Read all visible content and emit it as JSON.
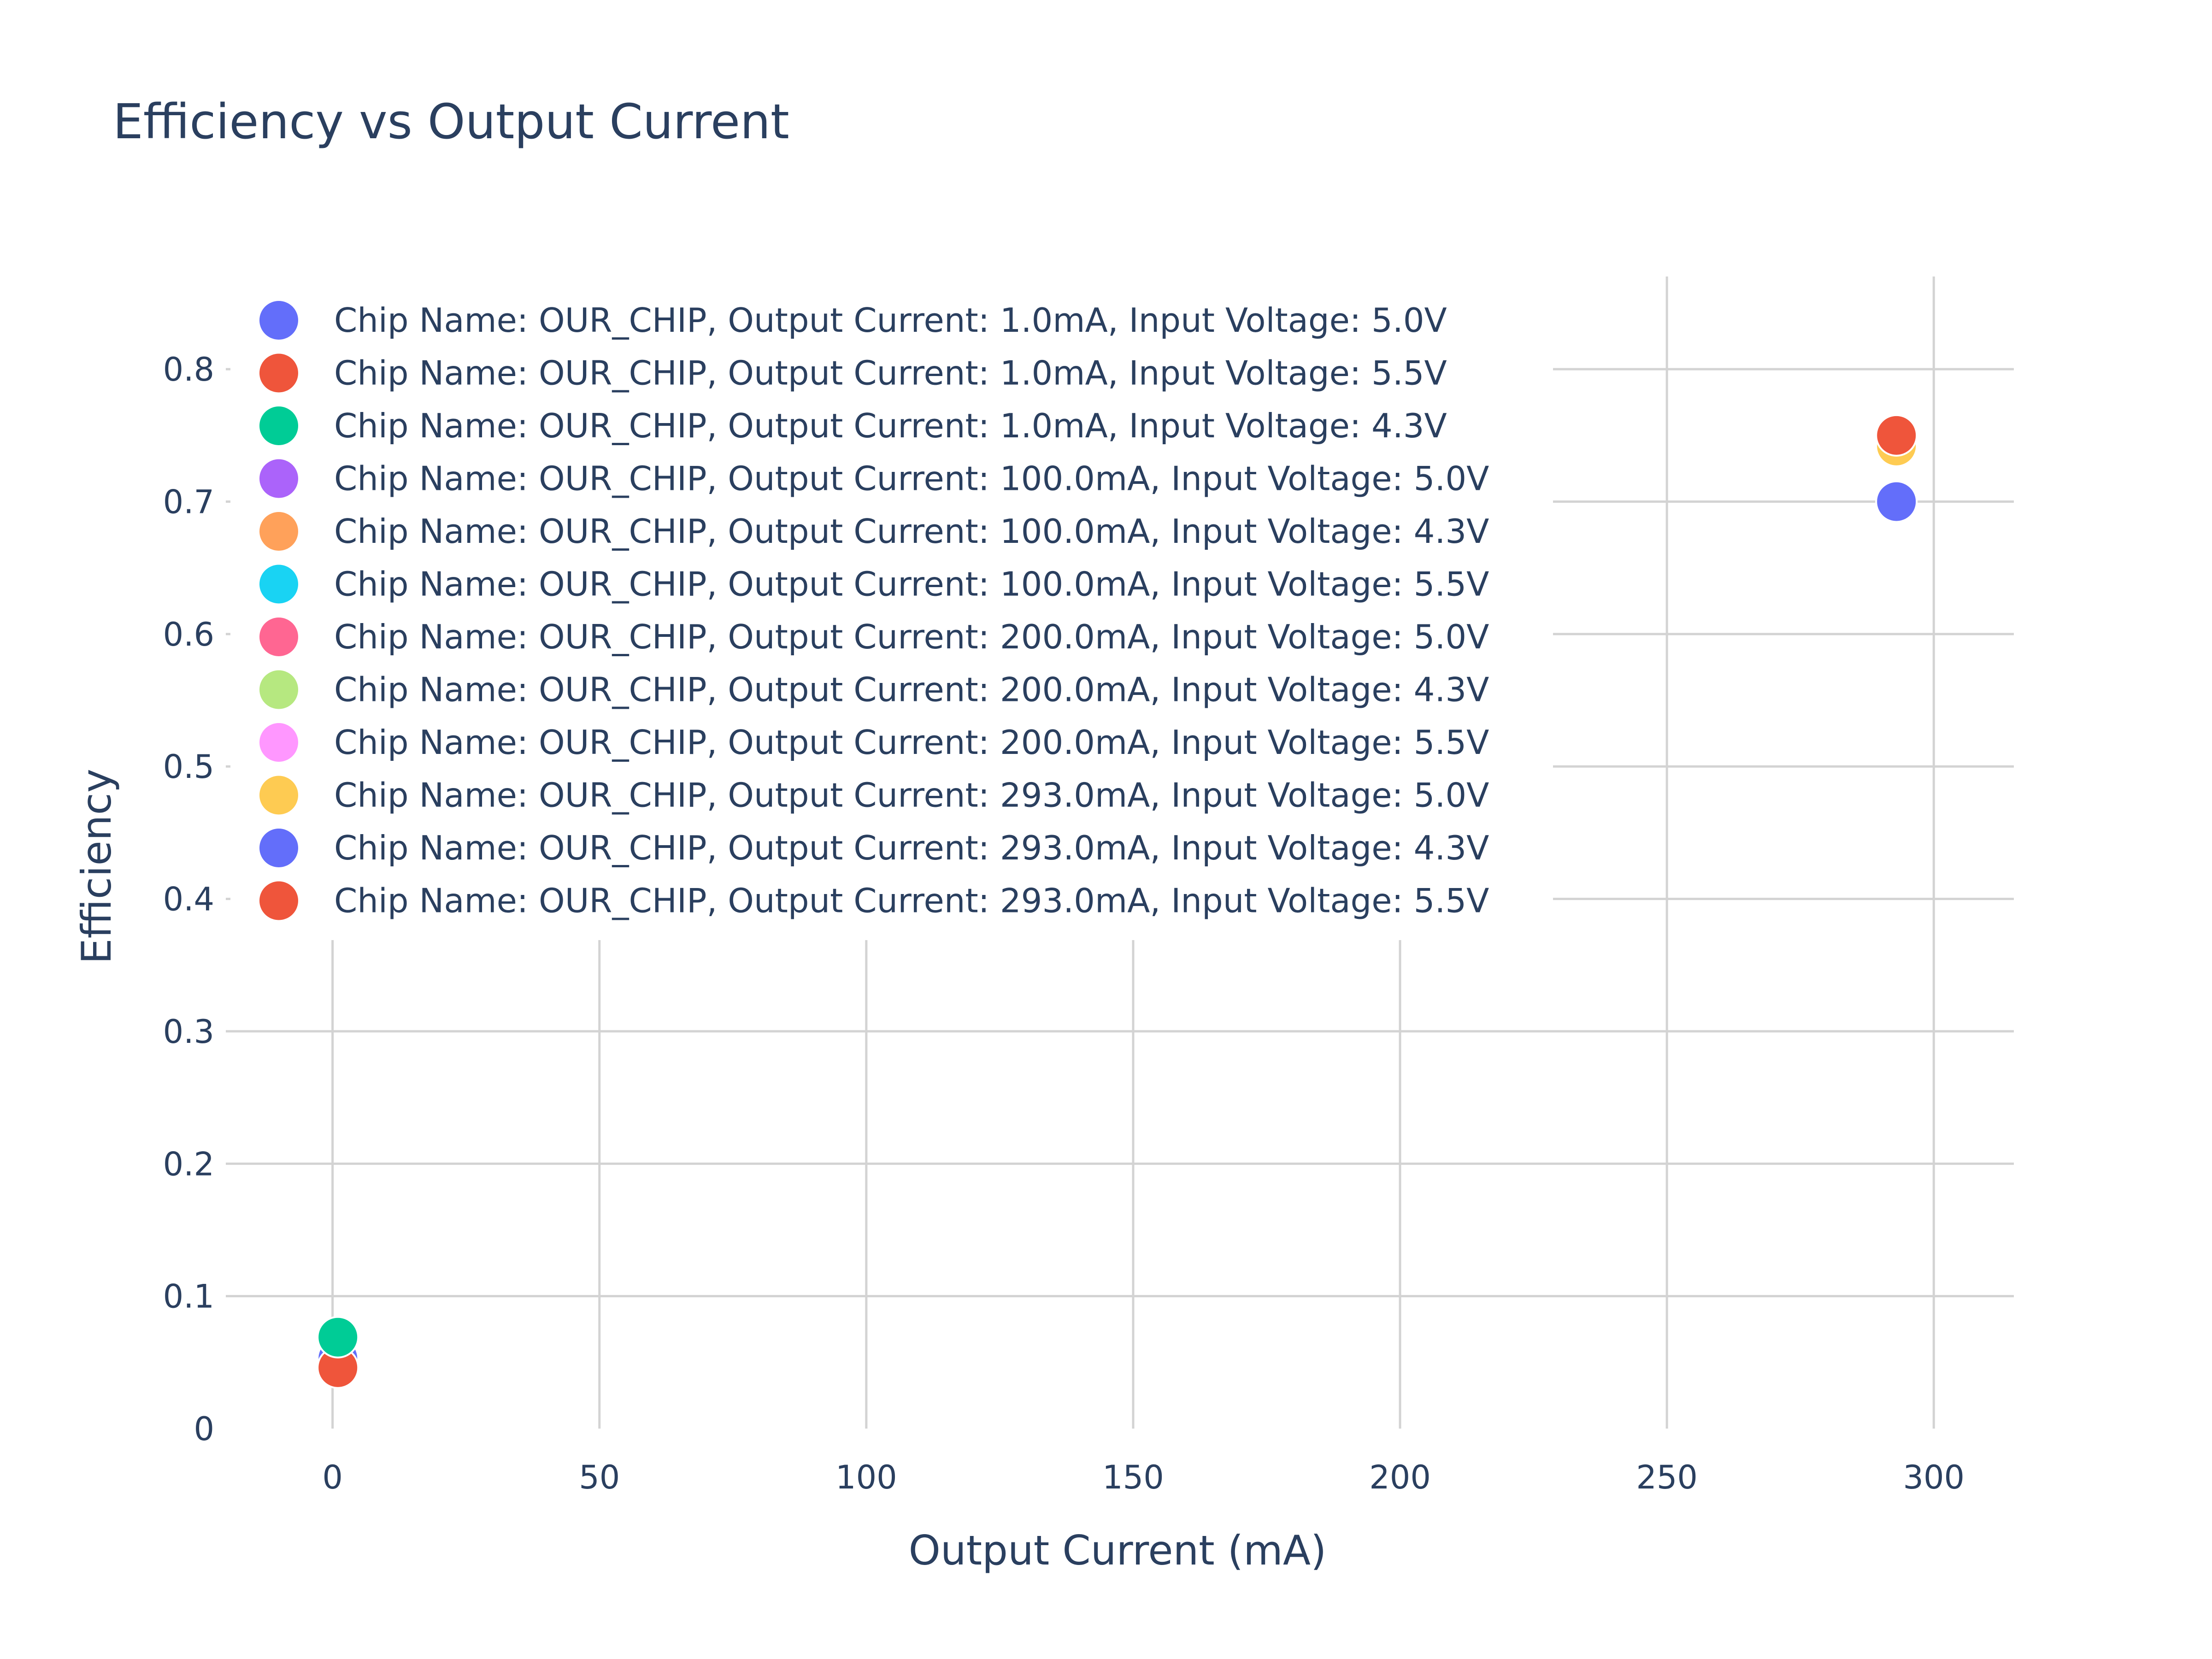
{
  "chart_data": {
    "type": "scatter",
    "title": "Efficiency vs Output Current",
    "xlabel": "Output Current (mA)",
    "ylabel": "Efficiency",
    "xlim": [
      -20,
      315
    ],
    "ylim": [
      0,
      0.87
    ],
    "x_ticks": [
      0,
      50,
      100,
      150,
      200,
      250,
      300
    ],
    "x_tick_labels": [
      "0",
      "50",
      "100",
      "150",
      "200",
      "250",
      "300"
    ],
    "y_ticks": [
      0,
      0.1,
      0.2,
      0.3,
      0.4,
      0.5,
      0.6,
      0.7,
      0.8
    ],
    "y_tick_labels": [
      "0",
      "0.1",
      "0.2",
      "0.3",
      "0.4",
      "0.5",
      "0.6",
      "0.7",
      "0.8"
    ],
    "grid": true,
    "legend_position": "top-left",
    "series": [
      {
        "name": "Chip Name: OUR_CHIP, Output Current: 1.0mA, Input Voltage: 5.0V",
        "color": "#636efa",
        "x": [
          1.0
        ],
        "y": [
          0.053
        ]
      },
      {
        "name": "Chip Name: OUR_CHIP, Output Current: 1.0mA, Input Voltage: 5.5V",
        "color": "#ef553b",
        "x": [
          1.0
        ],
        "y": [
          0.046
        ]
      },
      {
        "name": "Chip Name: OUR_CHIP, Output Current: 1.0mA, Input Voltage: 4.3V",
        "color": "#00cc96",
        "x": [
          1.0
        ],
        "y": [
          0.069
        ]
      },
      {
        "name": "Chip Name: OUR_CHIP, Output Current: 100.0mA, Input Voltage: 5.0V",
        "color": "#ab63fa",
        "x": [],
        "y": []
      },
      {
        "name": "Chip Name: OUR_CHIP, Output Current: 100.0mA, Input Voltage: 4.3V",
        "color": "#ffa15a",
        "x": [],
        "y": []
      },
      {
        "name": "Chip Name: OUR_CHIP, Output Current: 100.0mA, Input Voltage: 5.5V",
        "color": "#19d3f3",
        "x": [],
        "y": []
      },
      {
        "name": "Chip Name: OUR_CHIP, Output Current: 200.0mA, Input Voltage: 5.0V",
        "color": "#ff6692",
        "x": [],
        "y": []
      },
      {
        "name": "Chip Name: OUR_CHIP, Output Current: 200.0mA, Input Voltage: 4.3V",
        "color": "#b6e880",
        "x": [],
        "y": []
      },
      {
        "name": "Chip Name: OUR_CHIP, Output Current: 200.0mA, Input Voltage: 5.5V",
        "color": "#ff97ff",
        "x": [],
        "y": []
      },
      {
        "name": "Chip Name: OUR_CHIP, Output Current: 293.0mA, Input Voltage: 5.0V",
        "color": "#fecb52",
        "x": [
          293.0
        ],
        "y": [
          0.742
        ]
      },
      {
        "name": "Chip Name: OUR_CHIP, Output Current: 293.0mA, Input Voltage: 4.3V",
        "color": "#636efa",
        "x": [
          293.0
        ],
        "y": [
          0.7
        ]
      },
      {
        "name": "Chip Name: OUR_CHIP, Output Current: 293.0mA, Input Voltage: 5.5V",
        "color": "#ef553b",
        "x": [
          293.0
        ],
        "y": [
          0.75
        ]
      }
    ]
  }
}
